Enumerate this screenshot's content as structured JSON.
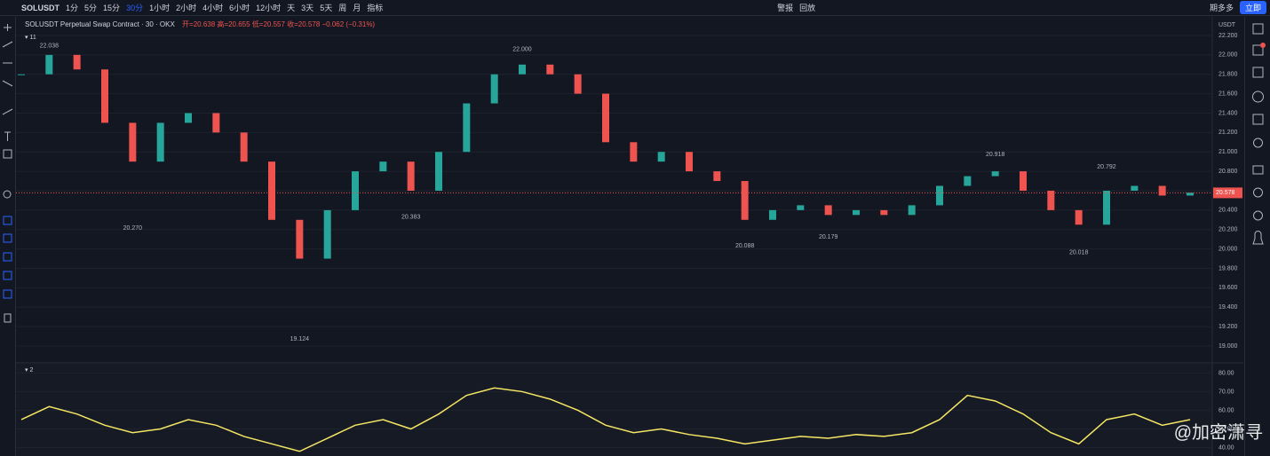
{
  "toolbar": {
    "symbol": "SOLUSDT",
    "intervals": [
      "1分",
      "5分",
      "15分",
      "30分",
      "1小时",
      "2小时",
      "4小时",
      "6小时",
      "12小时",
      "天",
      "3天",
      "5天",
      "周",
      "月"
    ],
    "indicators": "指标",
    "alert": "警报",
    "replay": "回放",
    "account": "期多多",
    "login": "立即"
  },
  "legend": {
    "title": "SOLUSDT Perpetual Swap Contract · 30 · OKX",
    "ohlc": "开=20.638 高=20.655 低=20.557 收=20.578 −0.062 (−0.31%)",
    "pane": "11",
    "pane2": "2"
  },
  "watermark": "@加密潇寻",
  "chart_data": [
    {
      "type": "candles",
      "currency": "USDT",
      "values": [
        21.8,
        22.0,
        21.85,
        21.3,
        20.9,
        21.3,
        21.4,
        21.2,
        20.9,
        20.3,
        19.9,
        20.4,
        20.8,
        20.9,
        20.6,
        21.0,
        21.5,
        21.8,
        21.9,
        21.8,
        21.6,
        21.1,
        20.9,
        21.0,
        20.8,
        20.7,
        20.3,
        20.4,
        20.45,
        20.35,
        20.4,
        20.35,
        20.45,
        20.65,
        20.75,
        20.8,
        20.6,
        20.4,
        20.25,
        20.6,
        20.65,
        20.55,
        20.58
      ],
      "up_color": "#26a69a",
      "down_color": "#ef5350",
      "ylim": [
        18.835,
        22.264
      ],
      "yticks": [
        {
          "value": 19.0,
          "label": "19.000"
        },
        {
          "value": 19.2,
          "label": "19.200"
        },
        {
          "value": 19.4,
          "label": "19.400"
        },
        {
          "value": 19.6,
          "label": "19.600"
        },
        {
          "value": 19.8,
          "label": "19.800"
        },
        {
          "value": 20.0,
          "label": "20.000"
        },
        {
          "value": 20.2,
          "label": "20.200"
        },
        {
          "value": 20.4,
          "label": "20.400"
        },
        {
          "value": 20.6,
          "label": "20.600"
        },
        {
          "value": 20.8,
          "label": "20.800"
        },
        {
          "value": 21.0,
          "label": "21.000"
        },
        {
          "value": 21.2,
          "label": "21.200"
        },
        {
          "value": 21.4,
          "label": "21.400"
        },
        {
          "value": 21.6,
          "label": "21.600"
        },
        {
          "value": 21.8,
          "label": "21.800"
        },
        {
          "value": 22.0,
          "label": "22.000"
        },
        {
          "value": 22.2,
          "label": "22.200"
        }
      ],
      "price_marker": {
        "value": 20.578,
        "label": "20.578"
      },
      "annotations": [
        {
          "at": 1,
          "value": 22.038,
          "label": "22.038"
        },
        {
          "at": 4,
          "value": 20.27,
          "label": "20.270"
        },
        {
          "at": 10,
          "value": 19.124,
          "label": "19.124"
        },
        {
          "at": 14,
          "value": 20.383,
          "label": "20.383"
        },
        {
          "at": 18,
          "value": 22.0,
          "label": "22.000"
        },
        {
          "at": 26,
          "value": 20.088,
          "label": "20.088"
        },
        {
          "at": 29,
          "value": 20.179,
          "label": "20.179"
        },
        {
          "at": 35,
          "value": 20.918,
          "label": "20.918"
        },
        {
          "at": 38,
          "value": 20.018,
          "label": "20.018"
        },
        {
          "at": 39,
          "value": 20.792,
          "label": "20.792"
        }
      ]
    },
    {
      "type": "line",
      "color": "#f5e663",
      "values": [
        55,
        62,
        58,
        52,
        48,
        50,
        55,
        52,
        46,
        42,
        38,
        45,
        52,
        55,
        50,
        58,
        68,
        72,
        70,
        66,
        60,
        52,
        48,
        50,
        47,
        45,
        42,
        44,
        46,
        45,
        47,
        46,
        48,
        55,
        68,
        65,
        58,
        48,
        42,
        55,
        58,
        52,
        55
      ],
      "ylim": [
        35.5,
        84
      ],
      "yticks": [
        {
          "value": 40,
          "label": "40.00"
        },
        {
          "value": 50,
          "label": "50.00"
        },
        {
          "value": 60,
          "label": "60.00"
        },
        {
          "value": 70,
          "label": "70.00"
        },
        {
          "value": 80,
          "label": "80.00"
        }
      ]
    }
  ]
}
